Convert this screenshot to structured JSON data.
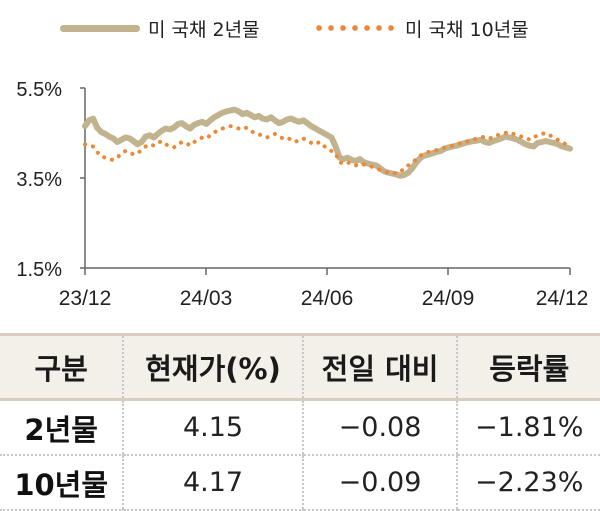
{
  "colors": {
    "y2": "#c2b38f",
    "y10": "#ee8835",
    "axis": "#666666"
  },
  "legend": [
    {
      "key": "y2",
      "label": "미 국채 2년물",
      "style": "line"
    },
    {
      "key": "y10",
      "label": "미 국채 10년물",
      "style": "dotted"
    }
  ],
  "chart_data": {
    "type": "line",
    "y_ticks": [
      "5.5%",
      "3.5%",
      "1.5%"
    ],
    "x_ticks": [
      "23/12",
      "24/03",
      "24/06",
      "24/09",
      "24/12"
    ],
    "ylim": [
      1.5,
      5.5
    ],
    "x_range": [
      0,
      12
    ],
    "series": [
      {
        "name": "미 국채 2년물",
        "key": "y2",
        "x": [
          0.0,
          0.1,
          0.2,
          0.3,
          0.4,
          0.5,
          0.6,
          0.7,
          0.8,
          0.9,
          1.0,
          1.1,
          1.2,
          1.3,
          1.4,
          1.5,
          1.6,
          1.7,
          1.8,
          1.9,
          2.0,
          2.1,
          2.2,
          2.3,
          2.4,
          2.5,
          2.6,
          2.7,
          2.8,
          2.9,
          3.0,
          3.1,
          3.2,
          3.3,
          3.4,
          3.5,
          3.6,
          3.7,
          3.8,
          3.9,
          4.0,
          4.1,
          4.2,
          4.3,
          4.4,
          4.5,
          4.6,
          4.7,
          4.8,
          4.9,
          5.0,
          5.1,
          5.2,
          5.3,
          5.4,
          5.5,
          5.6,
          5.7,
          5.8,
          5.9,
          6.0,
          6.1,
          6.2,
          6.3,
          6.4,
          6.5,
          6.6,
          6.7,
          6.8,
          6.9,
          7.0,
          7.1,
          7.2,
          7.3,
          7.4,
          7.5,
          7.6,
          7.7,
          7.8,
          7.9,
          8.0,
          8.1,
          8.2,
          8.3,
          8.4,
          8.5,
          8.6,
          8.7,
          8.8,
          8.9,
          9.0,
          9.1,
          9.2,
          9.3,
          9.4,
          9.5,
          9.6,
          9.7,
          9.8,
          9.9,
          10.0,
          10.1,
          10.2,
          10.3,
          10.4,
          10.5,
          10.6,
          10.7,
          10.8,
          10.9,
          11.0,
          11.1,
          11.2,
          11.3,
          11.4,
          11.5,
          11.6,
          11.7,
          11.8,
          11.9,
          12.0
        ],
        "values": [
          4.65,
          4.78,
          4.82,
          4.62,
          4.52,
          4.48,
          4.42,
          4.38,
          4.3,
          4.35,
          4.4,
          4.38,
          4.32,
          4.25,
          4.3,
          4.42,
          4.45,
          4.4,
          4.48,
          4.55,
          4.6,
          4.58,
          4.62,
          4.7,
          4.72,
          4.65,
          4.6,
          4.68,
          4.72,
          4.75,
          4.7,
          4.78,
          4.85,
          4.9,
          4.95,
          4.98,
          5.0,
          5.02,
          4.98,
          4.92,
          4.95,
          4.9,
          4.85,
          4.88,
          4.82,
          4.8,
          4.85,
          4.78,
          4.72,
          4.75,
          4.8,
          4.82,
          4.78,
          4.75,
          4.78,
          4.72,
          4.65,
          4.6,
          4.55,
          4.5,
          4.45,
          4.4,
          4.2,
          3.95,
          3.92,
          3.95,
          3.9,
          3.88,
          3.92,
          3.85,
          3.82,
          3.8,
          3.78,
          3.72,
          3.65,
          3.62,
          3.6,
          3.58,
          3.55,
          3.57,
          3.62,
          3.72,
          3.85,
          3.95,
          4.0,
          4.02,
          4.05,
          4.08,
          4.1,
          4.15,
          4.18,
          4.2,
          4.22,
          4.25,
          4.28,
          4.3,
          4.32,
          4.33,
          4.35,
          4.3,
          4.28,
          4.32,
          4.35,
          4.38,
          4.42,
          4.4,
          4.38,
          4.35,
          4.3,
          4.25,
          4.22,
          4.2,
          4.28,
          4.3,
          4.32,
          4.3,
          4.28,
          4.25,
          4.2,
          4.18,
          4.15
        ]
      },
      {
        "name": "미 국채 10년물",
        "key": "y10",
        "x": [
          0.0,
          0.1,
          0.2,
          0.3,
          0.4,
          0.5,
          0.6,
          0.7,
          0.8,
          0.9,
          1.0,
          1.1,
          1.2,
          1.3,
          1.4,
          1.5,
          1.6,
          1.7,
          1.8,
          1.9,
          2.0,
          2.1,
          2.2,
          2.3,
          2.4,
          2.5,
          2.6,
          2.7,
          2.8,
          2.9,
          3.0,
          3.1,
          3.2,
          3.3,
          3.4,
          3.5,
          3.6,
          3.7,
          3.8,
          3.9,
          4.0,
          4.1,
          4.2,
          4.3,
          4.4,
          4.5,
          4.6,
          4.7,
          4.8,
          4.9,
          5.0,
          5.1,
          5.2,
          5.3,
          5.4,
          5.5,
          5.6,
          5.7,
          5.8,
          5.9,
          6.0,
          6.1,
          6.2,
          6.3,
          6.4,
          6.5,
          6.6,
          6.7,
          6.8,
          6.9,
          7.0,
          7.1,
          7.2,
          7.3,
          7.4,
          7.5,
          7.6,
          7.7,
          7.8,
          7.9,
          8.0,
          8.1,
          8.2,
          8.3,
          8.4,
          8.5,
          8.6,
          8.7,
          8.8,
          8.9,
          9.0,
          9.1,
          9.2,
          9.3,
          9.4,
          9.5,
          9.6,
          9.7,
          9.8,
          9.9,
          10.0,
          10.1,
          10.2,
          10.3,
          10.4,
          10.5,
          10.6,
          10.7,
          10.8,
          10.9,
          11.0,
          11.1,
          11.2,
          11.3,
          11.4,
          11.5,
          11.6,
          11.7,
          11.8,
          11.9,
          12.0
        ],
        "values": [
          4.25,
          4.22,
          4.2,
          4.08,
          3.98,
          3.95,
          3.92,
          3.9,
          3.95,
          4.05,
          4.1,
          4.08,
          4.02,
          4.05,
          4.12,
          4.2,
          4.25,
          4.22,
          4.28,
          4.32,
          4.25,
          4.2,
          4.18,
          4.25,
          4.3,
          4.28,
          4.22,
          4.3,
          4.35,
          4.4,
          4.38,
          4.45,
          4.52,
          4.55,
          4.6,
          4.62,
          4.65,
          4.62,
          4.6,
          4.58,
          4.62,
          4.55,
          4.5,
          4.48,
          4.42,
          4.4,
          4.45,
          4.48,
          4.42,
          4.38,
          4.4,
          4.35,
          4.3,
          4.35,
          4.38,
          4.32,
          4.28,
          4.25,
          4.3,
          4.22,
          4.15,
          4.1,
          4.05,
          3.85,
          3.82,
          3.85,
          3.8,
          3.78,
          3.82,
          3.8,
          3.78,
          3.75,
          3.72,
          3.68,
          3.65,
          3.62,
          3.62,
          3.6,
          3.65,
          3.7,
          3.78,
          3.85,
          3.92,
          4.0,
          4.05,
          4.08,
          4.1,
          4.12,
          4.15,
          4.18,
          4.2,
          4.22,
          4.25,
          4.28,
          4.3,
          4.32,
          4.35,
          4.38,
          4.4,
          4.42,
          4.38,
          4.4,
          4.45,
          4.48,
          4.5,
          4.52,
          4.48,
          4.45,
          4.42,
          4.4,
          4.35,
          4.4,
          4.45,
          4.48,
          4.5,
          4.45,
          4.4,
          4.35,
          4.3,
          4.25,
          4.17
        ]
      }
    ]
  },
  "table": {
    "headers": [
      "구분",
      "현재가(%)",
      "전일 대비",
      "등락률"
    ],
    "rows": [
      {
        "label": "2년물",
        "price": "4.15",
        "change": "−0.08",
        "rate": "−1.81%"
      },
      {
        "label": "10년물",
        "price": "4.17",
        "change": "−0.09",
        "rate": "−2.23%"
      }
    ]
  }
}
